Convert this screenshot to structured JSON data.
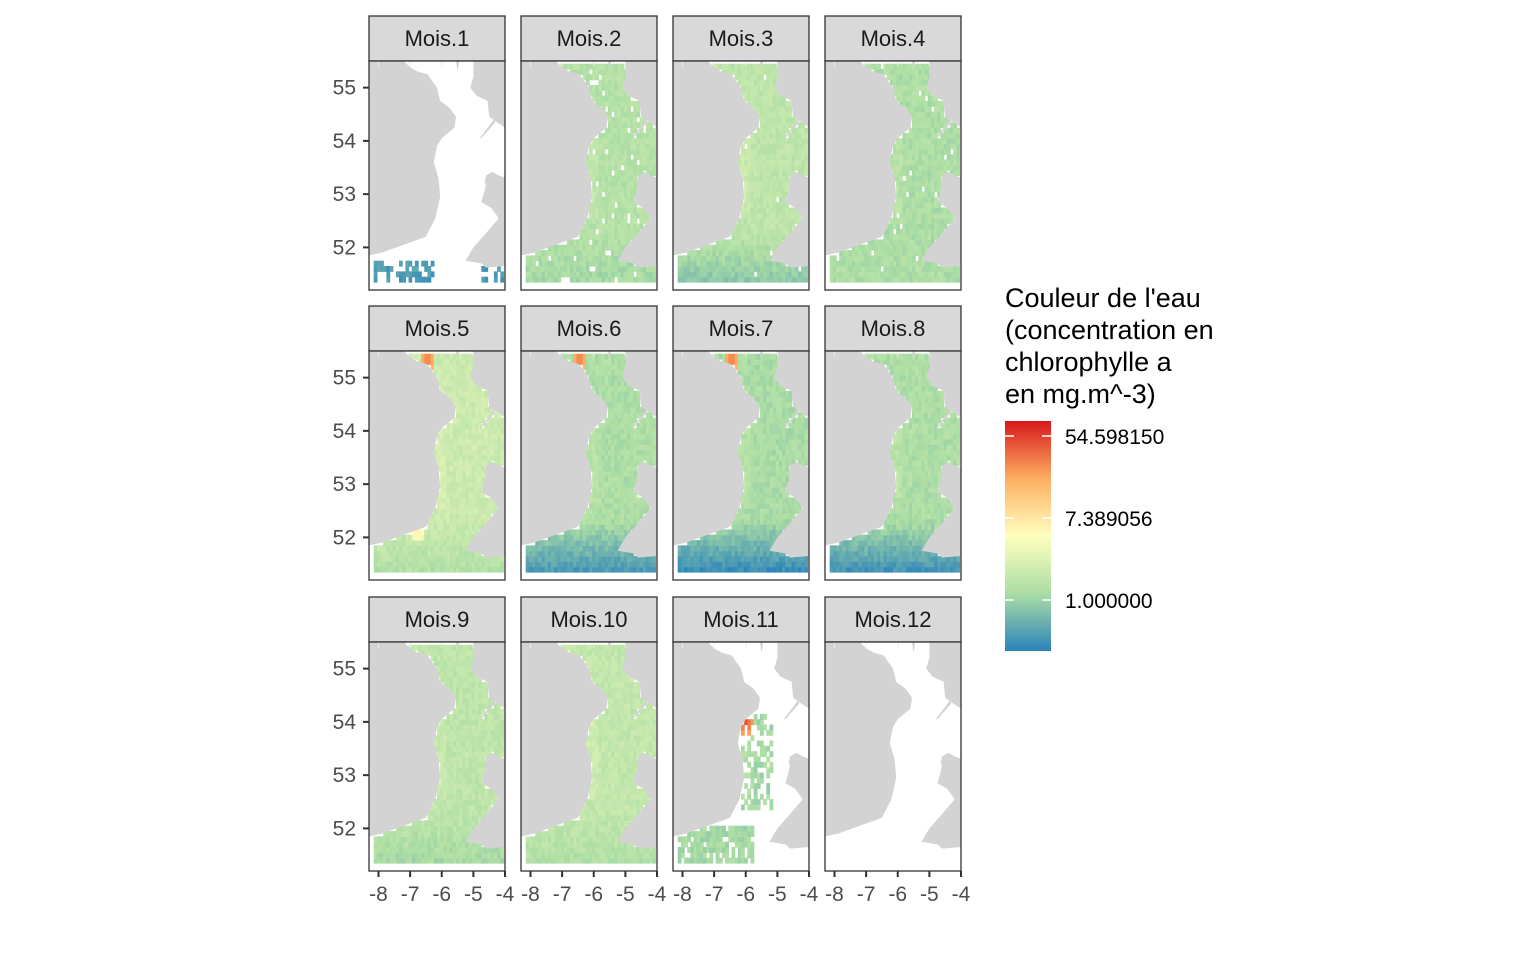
{
  "chart_data": {
    "type": "heatmap",
    "subtype": "faceted map",
    "title": "",
    "xlabel": "",
    "ylabel": "",
    "facets": [
      "Mois.1",
      "Mois.2",
      "Mois.3",
      "Mois.4",
      "Mois.5",
      "Mois.6",
      "Mois.7",
      "Mois.8",
      "Mois.9",
      "Mois.10",
      "Mois.11",
      "Mois.12"
    ],
    "facet_columns": 4,
    "xlim": [
      -8.3,
      -4
    ],
    "ylim": [
      51.2,
      55.5
    ],
    "x_ticks": [
      -8,
      -7,
      -6,
      -5,
      -4
    ],
    "x_tick_labels": [
      "-8",
      "-7",
      "-6",
      "-5",
      "-4"
    ],
    "y_ticks": [
      52,
      53,
      54,
      55
    ],
    "y_tick_labels": [
      "52",
      "53",
      "54",
      "55"
    ],
    "colors": {
      "land": "#d3d3d3",
      "panel_border": "#333333",
      "strip_fill": "#d9d9d9"
    },
    "legend": {
      "title_lines": [
        "Couleur de l'eau",
        "(concentration en",
        "chlorophylle a",
        "en mg.m^-3)"
      ],
      "scale": "log",
      "breaks": [
        1.0,
        7.389056,
        54.59815
      ],
      "labels": [
        "54.598150",
        "7.389056",
        "1.000000"
      ],
      "palette": [
        "#2b83ba",
        "#abdda4",
        "#ffffbf",
        "#fdae61",
        "#d7191c"
      ],
      "position": "right"
    }
  }
}
